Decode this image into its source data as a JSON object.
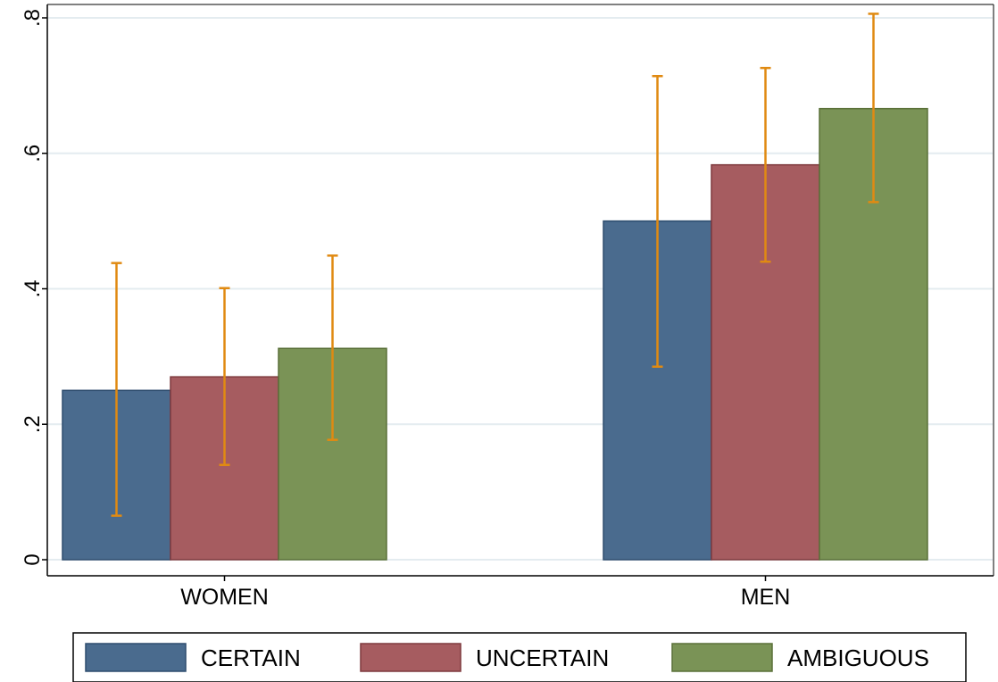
{
  "chart_data": {
    "type": "bar",
    "categories": [
      "WOMEN",
      "MEN"
    ],
    "series": [
      {
        "name": "CERTAIN",
        "color": "#4a6b8e",
        "stroke": "#2e4d6e",
        "values": [
          0.25,
          0.5
        ],
        "ci_low": [
          0.065,
          0.285
        ],
        "ci_high": [
          0.438,
          0.714
        ]
      },
      {
        "name": "UNCERTAIN",
        "color": "#a65c60",
        "stroke": "#7f3a3e",
        "values": [
          0.27,
          0.583
        ],
        "ci_low": [
          0.14,
          0.44
        ],
        "ci_high": [
          0.401,
          0.726
        ]
      },
      {
        "name": "AMBIGUOUS",
        "color": "#7a9356",
        "stroke": "#5a7038",
        "values": [
          0.312,
          0.666
        ],
        "ci_low": [
          0.177,
          0.528
        ],
        "ci_high": [
          0.449,
          0.806
        ]
      }
    ],
    "errorbar_color": "#e08a12",
    "ylim": [
      0,
      0.8
    ],
    "yticks": [
      0,
      0.2,
      0.4,
      0.6,
      0.8
    ],
    "ytick_labels": [
      "0",
      ".2",
      ".4",
      ".6",
      ".8"
    ],
    "grid": true,
    "grid_color": "#e4ecf0",
    "legend_position": "bottom",
    "title": "",
    "xlabel": "",
    "ylabel": ""
  }
}
